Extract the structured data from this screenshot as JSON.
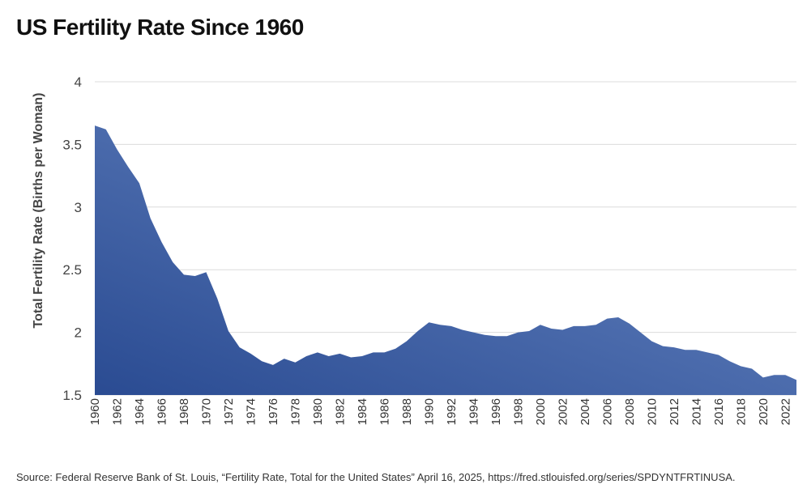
{
  "chart_data": {
    "type": "area",
    "title": "US Fertility Rate Since 1960",
    "ylabel": "Total Fertility Rate (Births per Woman)",
    "xlabel": "",
    "ylim": [
      1.5,
      4
    ],
    "yticks": [
      1.5,
      2,
      2.5,
      3,
      3.5,
      4
    ],
    "ytick_labels": [
      "1.5",
      "2",
      "2.5",
      "3",
      "3.5",
      "4"
    ],
    "xlim": [
      1960,
      2023
    ],
    "xtick_labels": [
      "1960",
      "1962",
      "1964",
      "1966",
      "1968",
      "1970",
      "1972",
      "1974",
      "1976",
      "1978",
      "1980",
      "1982",
      "1984",
      "1986",
      "1988",
      "1990",
      "1992",
      "1994",
      "1996",
      "1998",
      "2000",
      "2002",
      "2004",
      "2006",
      "2008",
      "2010",
      "2012",
      "2014",
      "2016",
      "2018",
      "2020",
      "2022"
    ],
    "grid": true,
    "legend": "none",
    "colors": {
      "area_top": "#6c8bc6",
      "area_bottom": "#2a4b92",
      "grid": "#dcdcdc"
    },
    "series": [
      {
        "x": [
          1960,
          1961,
          1962,
          1963,
          1964,
          1965,
          1966,
          1967,
          1968,
          1969,
          1970,
          1971,
          1972,
          1973,
          1974,
          1975,
          1976,
          1977,
          1978,
          1979,
          1980,
          1981,
          1982,
          1983,
          1984,
          1985,
          1986,
          1987,
          1988,
          1989,
          1990,
          1991,
          1992,
          1993,
          1994,
          1995,
          1996,
          1997,
          1998,
          1999,
          2000,
          2001,
          2002,
          2003,
          2004,
          2005,
          2006,
          2007,
          2008,
          2009,
          2010,
          2011,
          2012,
          2013,
          2014,
          2015,
          2016,
          2017,
          2018,
          2019,
          2020,
          2021,
          2022,
          2023
        ],
        "values": [
          3.65,
          3.62,
          3.46,
          3.32,
          3.19,
          2.91,
          2.72,
          2.56,
          2.46,
          2.45,
          2.48,
          2.27,
          2.01,
          1.88,
          1.83,
          1.77,
          1.74,
          1.79,
          1.76,
          1.81,
          1.84,
          1.81,
          1.83,
          1.8,
          1.81,
          1.84,
          1.84,
          1.87,
          1.93,
          2.01,
          2.08,
          2.06,
          2.05,
          2.02,
          2.0,
          1.98,
          1.97,
          1.97,
          2.0,
          2.01,
          2.06,
          2.03,
          2.02,
          2.05,
          2.05,
          2.06,
          2.11,
          2.12,
          2.07,
          2.0,
          1.93,
          1.89,
          1.88,
          1.86,
          1.86,
          1.84,
          1.82,
          1.77,
          1.73,
          1.71,
          1.64,
          1.66,
          1.66,
          1.62
        ]
      }
    ]
  },
  "source": "Source: Federal Reserve Bank of St. Louis, “Fertility Rate, Total for the United States” April 16, 2025, https://fred.stlouisfed.org/series/SPDYNTFRTINUSA."
}
